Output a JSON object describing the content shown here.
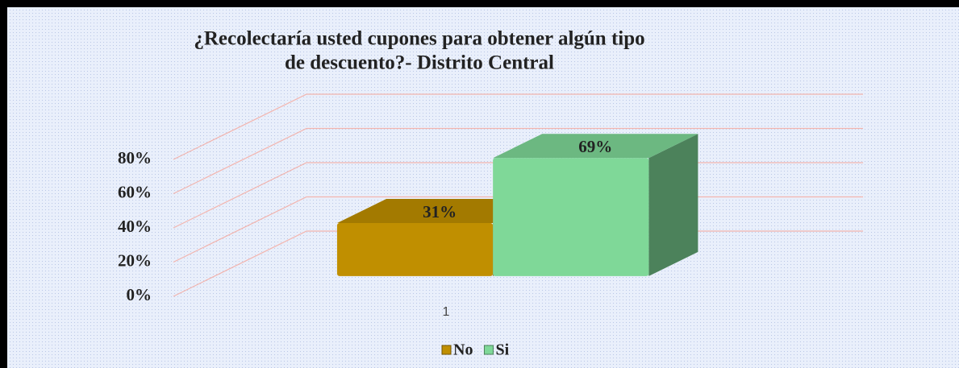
{
  "chart_data": {
    "type": "bar3d",
    "title": "¿Recolectaría usted cupones para obtener algún tipo",
    "subtitle": "de descuento?- Distrito Central",
    "categories": [
      "1"
    ],
    "series": [
      {
        "name": "No",
        "color": "#c08f00",
        "values": [
          31
        ],
        "value_labels": [
          "31%"
        ]
      },
      {
        "name": "Si",
        "color": "#7fd898",
        "values": [
          69
        ],
        "value_labels": [
          "69%"
        ]
      }
    ],
    "ylim": [
      0,
      80
    ],
    "yticks": [
      {
        "value": 0,
        "label": "0%"
      },
      {
        "value": 20,
        "label": "20%"
      },
      {
        "value": 40,
        "label": "40%"
      },
      {
        "value": 60,
        "label": "60%"
      },
      {
        "value": 80,
        "label": "80%"
      }
    ],
    "grid": true,
    "legend": "bottom"
  }
}
